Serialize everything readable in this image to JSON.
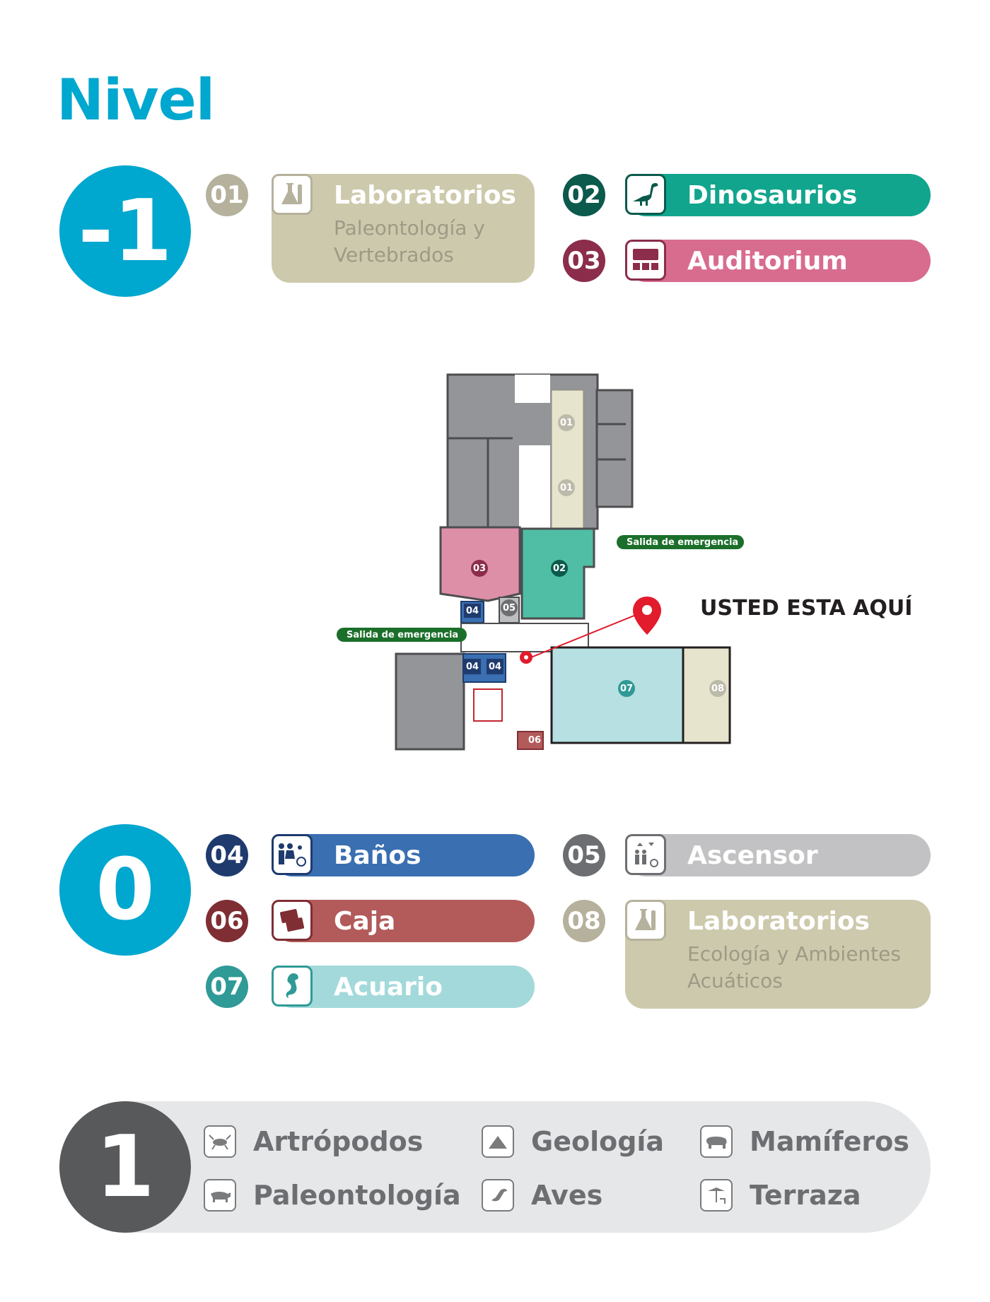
{
  "title": "Nivel",
  "levels": {
    "minus1": {
      "label": "-1",
      "color": "#00a7cf",
      "items": [
        {
          "num": "01",
          "title": "Laboratorios",
          "sub1": "Paleontología y",
          "sub2": "Vertebrados",
          "color": "#cdc9ac",
          "numColor": "#b5b19c",
          "icon": "flask-icon"
        },
        {
          "num": "02",
          "title": "Dinosaurios",
          "color": "#11a58d",
          "numColor": "#0b5a4c",
          "icon": "dinosaur-icon"
        },
        {
          "num": "03",
          "title": "Auditorium",
          "color": "#d86c8f",
          "numColor": "#8b2d4b",
          "icon": "auditorium-icon"
        }
      ]
    },
    "zero": {
      "label": "0",
      "color": "#00a7cf",
      "items": [
        {
          "num": "04",
          "title": "Baños",
          "color": "#3a6fb1",
          "numColor": "#1f3b6e",
          "icon": "restroom-icon"
        },
        {
          "num": "05",
          "title": "Ascensor",
          "color": "#c2c2c4",
          "numColor": "#6d6e71",
          "icon": "elevator-icon"
        },
        {
          "num": "06",
          "title": "Caja",
          "color": "#b35a5a",
          "numColor": "#7f2e33",
          "icon": "tickets-icon"
        },
        {
          "num": "07",
          "title": "Acuario",
          "color": "#a3d9da",
          "numColor": "#2f9a96",
          "icon": "seahorse-icon"
        },
        {
          "num": "08",
          "title": "Laboratorios",
          "sub1": "Ecología y Ambientes",
          "sub2": "Acuáticos",
          "color": "#cdc9ac",
          "numColor": "#b5b19c",
          "icon": "flask-icon"
        }
      ]
    },
    "one": {
      "label": "1",
      "color": "#58595b",
      "items": [
        {
          "title": "Artrópodos",
          "icon": "insect-icon"
        },
        {
          "title": "Geología",
          "icon": "mountain-icon"
        },
        {
          "title": "Mamíferos",
          "icon": "mammal-icon"
        },
        {
          "title": "Paleontología",
          "icon": "fossil-animal-icon"
        },
        {
          "title": "Aves",
          "icon": "bird-icon"
        },
        {
          "title": "Terraza",
          "icon": "terrace-icon"
        }
      ]
    }
  },
  "map": {
    "you_are_here": "USTED ESTA AQUÍ",
    "emergency_exit": "Salida de emergencia",
    "room_labels": [
      "01",
      "01",
      "02",
      "03",
      "04",
      "04",
      "04",
      "05",
      "06",
      "07",
      "08"
    ]
  }
}
